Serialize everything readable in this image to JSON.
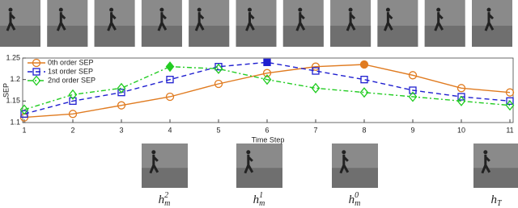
{
  "chart_data": {
    "type": "line",
    "x": [
      1,
      2,
      3,
      4,
      5,
      6,
      7,
      8,
      9,
      10,
      11
    ],
    "xlim": [
      1,
      11
    ],
    "xticks": [
      1,
      2,
      3,
      4,
      5,
      6,
      7,
      8,
      9,
      10,
      11
    ],
    "ylim": [
      1.1,
      1.25
    ],
    "yticks": [
      1.1,
      1.15,
      1.2,
      1.25
    ],
    "x_label": "Time Step",
    "y_label": "SEP",
    "legend": "upper-left",
    "series": [
      {
        "name": "0th order SEP",
        "color": "#e07b20",
        "marker": "circle",
        "dash": "solid",
        "highlight_x": 8,
        "values": [
          1.112,
          1.12,
          1.14,
          1.16,
          1.19,
          1.215,
          1.23,
          1.235,
          1.21,
          1.18,
          1.17
        ]
      },
      {
        "name": "1st order SEP",
        "color": "#1f1fd0",
        "marker": "square",
        "dash": "dashed",
        "highlight_x": 6,
        "values": [
          1.12,
          1.15,
          1.17,
          1.2,
          1.23,
          1.24,
          1.22,
          1.2,
          1.175,
          1.16,
          1.15
        ]
      },
      {
        "name": "2nd order SEP",
        "color": "#22cc22",
        "marker": "diamond",
        "dash": "dashdot",
        "highlight_x": 4,
        "values": [
          1.13,
          1.165,
          1.18,
          1.23,
          1.225,
          1.2,
          1.18,
          1.17,
          1.16,
          1.15,
          1.14
        ]
      }
    ]
  },
  "frame_labels": [
    {
      "base": "h",
      "sub": "m",
      "sup": "2"
    },
    {
      "base": "h",
      "sub": "m",
      "sup": "1"
    },
    {
      "base": "h",
      "sub": "m",
      "sup": "0"
    },
    {
      "base": "h",
      "sub": "T"
    }
  ]
}
